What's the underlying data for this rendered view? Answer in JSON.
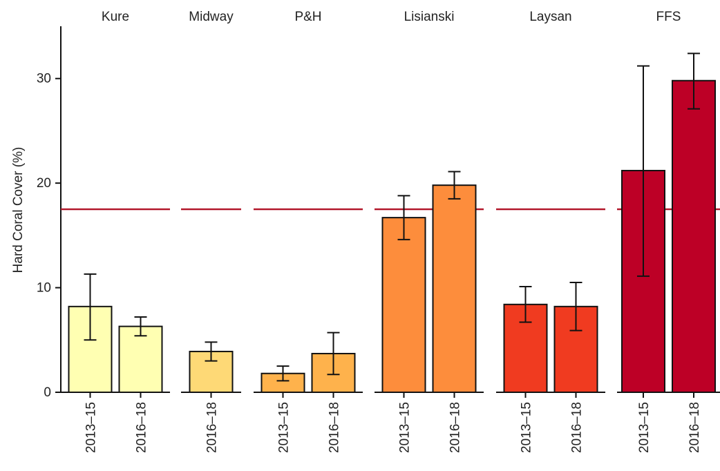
{
  "chart_data": {
    "type": "bar",
    "ylabel": "Hard Coral Cover (%)",
    "ylim": [
      0,
      35
    ],
    "yticks": [
      0,
      10,
      20,
      30
    ],
    "reference_line": {
      "value": 17.5,
      "color": "#b2182b"
    },
    "facets": [
      {
        "name": "Kure",
        "color": "#ffffb2",
        "bars": [
          {
            "period": "2013–15",
            "value": 8.2,
            "error_low": 5.0,
            "error_high": 11.3
          },
          {
            "period": "2016–18",
            "value": 6.3,
            "error_low": 5.4,
            "error_high": 7.2
          }
        ]
      },
      {
        "name": "Midway",
        "color": "#fed976",
        "bars": [
          {
            "period": "2016–18",
            "value": 3.9,
            "error_low": 3.0,
            "error_high": 4.8
          }
        ]
      },
      {
        "name": "P&H",
        "color": "#feb24c",
        "bars": [
          {
            "period": "2013–15",
            "value": 1.8,
            "error_low": 1.1,
            "error_high": 2.5
          },
          {
            "period": "2016–18",
            "value": 3.7,
            "error_low": 1.7,
            "error_high": 5.7
          }
        ]
      },
      {
        "name": "Lisianski",
        "color": "#fd8d3c",
        "bars": [
          {
            "period": "2013–15",
            "value": 16.7,
            "error_low": 14.6,
            "error_high": 18.8
          },
          {
            "period": "2016–18",
            "value": 19.8,
            "error_low": 18.5,
            "error_high": 21.1
          }
        ]
      },
      {
        "name": "Laysan",
        "color": "#f03b20",
        "bars": [
          {
            "period": "2013–15",
            "value": 8.4,
            "error_low": 6.7,
            "error_high": 10.1
          },
          {
            "period": "2016–18",
            "value": 8.2,
            "error_low": 5.9,
            "error_high": 10.5
          }
        ]
      },
      {
        "name": "FFS",
        "color": "#bd0026",
        "bars": [
          {
            "period": "2013–15",
            "value": 21.2,
            "error_low": 11.1,
            "error_high": 31.2
          },
          {
            "period": "2016–18",
            "value": 29.8,
            "error_low": 27.1,
            "error_high": 32.4
          }
        ]
      }
    ]
  }
}
